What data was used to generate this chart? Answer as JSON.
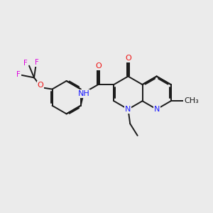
{
  "bg": "#ebebeb",
  "bc": "#1a1a1a",
  "nc": "#1a1aff",
  "oc": "#ee1111",
  "fc": "#dd00dd",
  "fs": 8.0,
  "lw": 1.4,
  "dbo": 0.055,
  "xlim": [
    0,
    10
  ],
  "ylim": [
    0,
    10
  ]
}
